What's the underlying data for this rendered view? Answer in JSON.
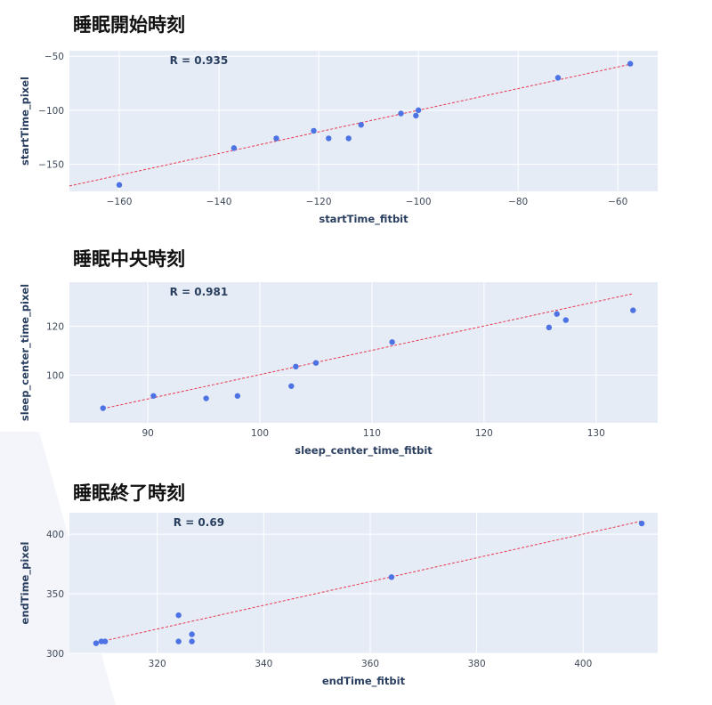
{
  "theme": {
    "plot_bg": "#e5ecf6",
    "grid": "#ffffff",
    "point": "#4d72e3",
    "fit_line": "#e8384f",
    "text": "#2a3f5f",
    "tick_text": "#3f4a5a",
    "deco_shape": "#f3f5fa"
  },
  "chart_data": [
    {
      "type": "scatter",
      "title": "睡眠開始時刻",
      "annotation": "R = 0.935",
      "xlabel": "startTime_fitbit",
      "ylabel": "startTime_pixel",
      "xlim": [
        -170,
        -52
      ],
      "ylim": [
        -175,
        -45
      ],
      "xticks": [
        -160,
        -140,
        -120,
        -100,
        -80,
        -60
      ],
      "yticks": [
        -150,
        -100,
        -50
      ],
      "grid": true,
      "x": [
        -160,
        -137,
        -128.5,
        -121,
        -118,
        -114,
        -111.5,
        -103.5,
        -100.5,
        -100,
        -72,
        -57.5
      ],
      "y": [
        -169,
        -135,
        -126,
        -119,
        -126,
        -126,
        -113.5,
        -103,
        -105,
        -100,
        -70,
        -57
      ],
      "fit": {
        "x": [
          -170,
          -57
        ],
        "y": [
          -170,
          -57
        ]
      }
    },
    {
      "type": "scatter",
      "title": "睡眠中央時刻",
      "annotation": "R = 0.981",
      "xlabel": "sleep_center_time_fitbit",
      "ylabel": "sleep_center_time_pixel",
      "xlim": [
        83,
        135.5
      ],
      "ylim": [
        80.5,
        138
      ],
      "xticks": [
        90,
        100,
        110,
        120,
        130
      ],
      "yticks": [
        100,
        120
      ],
      "grid": true,
      "x": [
        86,
        90.5,
        95.2,
        98,
        102.8,
        103.2,
        105,
        111.8,
        125.8,
        126.5,
        127.3,
        133.3
      ],
      "y": [
        86.5,
        91.5,
        90.5,
        91.5,
        95.5,
        103.5,
        105,
        113.5,
        119.5,
        125,
        122.5,
        126.5
      ],
      "fit": {
        "x": [
          86,
          133.3
        ],
        "y": [
          86.3,
          133.3
        ]
      }
    },
    {
      "type": "scatter",
      "title": "睡眠終了時刻",
      "annotation": "R = 0.69",
      "xlabel": "endTime_fitbit",
      "ylabel": "endTime_pixel",
      "xlim": [
        303.5,
        414
      ],
      "ylim": [
        300,
        418
      ],
      "xticks": [
        320,
        340,
        360,
        380,
        400
      ],
      "yticks": [
        300,
        350,
        400
      ],
      "grid": true,
      "x": [
        308.5,
        309.5,
        310.2,
        324,
        324,
        326.5,
        326.5,
        364,
        411
      ],
      "y": [
        308.5,
        310,
        310,
        332,
        310,
        316,
        310,
        364,
        409
      ],
      "fit": {
        "x": [
          308.5,
          411
        ],
        "y": [
          309,
          411
        ]
      }
    }
  ]
}
